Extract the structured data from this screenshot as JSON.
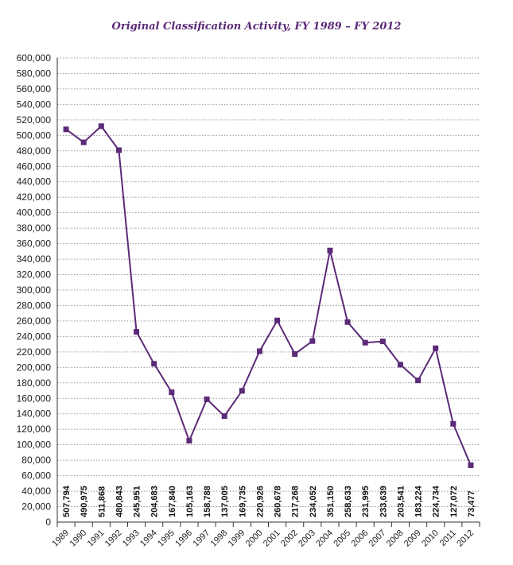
{
  "chart_data": {
    "type": "line",
    "title": "Original Classification Activity, FY 1989 – FY 2012",
    "xlabel": "",
    "ylabel": "",
    "x": [
      "1989",
      "1990",
      "1991",
      "1992",
      "1993",
      "1994",
      "1995",
      "1996",
      "1997",
      "1998",
      "1999",
      "2000",
      "2001",
      "2002",
      "2003",
      "2004",
      "2005",
      "2006",
      "2007",
      "2008",
      "2009",
      "2010",
      "2011",
      "2012"
    ],
    "values": [
      507794,
      490975,
      511868,
      480843,
      245951,
      204683,
      167840,
      105163,
      158788,
      137005,
      169735,
      220926,
      260678,
      217268,
      234052,
      351150,
      258633,
      231995,
      233639,
      203541,
      183224,
      224734,
      127072,
      73477
    ],
    "data_labels": [
      "507,794",
      "490,975",
      "511,868",
      "480,843",
      "245,951",
      "204,683",
      "167,840",
      "105,163",
      "158,788",
      "137,005",
      "169,735",
      "220,926",
      "260,678",
      "217,268",
      "234,052",
      "351,150",
      "258,633",
      "231,995",
      "233,639",
      "203,541",
      "183,224",
      "224,734",
      "127,072",
      "73,477"
    ],
    "y_ticks": [
      "0",
      "20,000",
      "40,000",
      "60,000",
      "80,000",
      "100,000",
      "120,000",
      "140,000",
      "160,000",
      "180,000",
      "200,000",
      "220,000",
      "240,000",
      "260,000",
      "280,000",
      "300,000",
      "320,000",
      "340,000",
      "360,000",
      "380,000",
      "400,000",
      "420,000",
      "440,000",
      "460,000",
      "480,000",
      "500,000",
      "520,000",
      "540,000",
      "560,000",
      "580,000",
      "600,000"
    ],
    "ylim": [
      0,
      600000
    ],
    "grid": true,
    "legend": "none",
    "line_color": "#5b2a78",
    "marker_color": "#5b2a78",
    "marker": "square"
  }
}
